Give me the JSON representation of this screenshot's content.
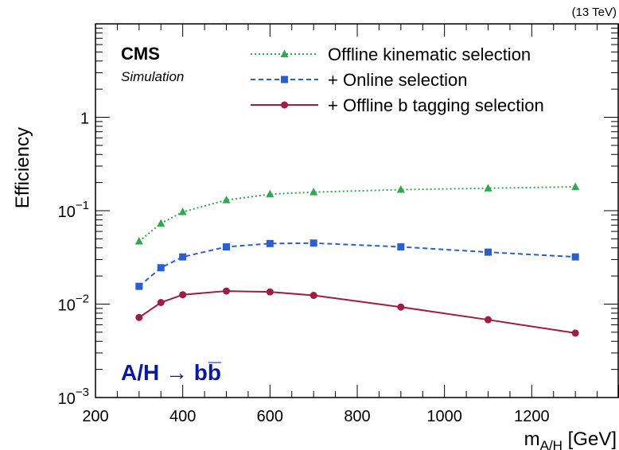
{
  "chart_data": {
    "type": "line",
    "energy_label": "(13 TeV)",
    "experiment_label": "CMS",
    "experiment_sublabel": "Simulation",
    "process_label": "A/H → bb̅",
    "process_color": "#0a1aa0",
    "xlabel": "m_{A/H} [GeV]",
    "ylabel": "Efficiency",
    "xlim": [
      200,
      1400
    ],
    "ylim": [
      0.001,
      10
    ],
    "yscale": "log",
    "x_ticks": [
      200,
      400,
      600,
      800,
      1000,
      1200
    ],
    "y_ticks": [
      {
        "value": 0.001,
        "base": "10",
        "exp": "−3"
      },
      {
        "value": 0.01,
        "base": "10",
        "exp": "−2"
      },
      {
        "value": 0.1,
        "base": "10",
        "exp": "−1"
      },
      {
        "value": 1,
        "base": "1",
        "exp": ""
      }
    ],
    "legend_position": "top-right",
    "x": [
      300,
      350,
      400,
      500,
      600,
      700,
      900,
      1100,
      1300
    ],
    "series": [
      {
        "name": "Offline kinematic selection",
        "color": "#2eaa4e",
        "line_style": "dotted",
        "marker": "triangle",
        "values": [
          0.047,
          0.073,
          0.097,
          0.13,
          0.15,
          0.158,
          0.168,
          0.174,
          0.18
        ]
      },
      {
        "name": "+ Online selection",
        "color": "#2b5fcf",
        "line_style": "dashed",
        "marker": "square",
        "values": [
          0.0155,
          0.0245,
          0.032,
          0.041,
          0.0445,
          0.045,
          0.041,
          0.036,
          0.032
        ]
      },
      {
        "name": "+ Offline b tagging selection",
        "color": "#a01c40",
        "line_style": "solid",
        "marker": "circle",
        "values": [
          0.0072,
          0.0104,
          0.0126,
          0.0138,
          0.0135,
          0.0124,
          0.0093,
          0.0068,
          0.0049
        ]
      }
    ]
  }
}
